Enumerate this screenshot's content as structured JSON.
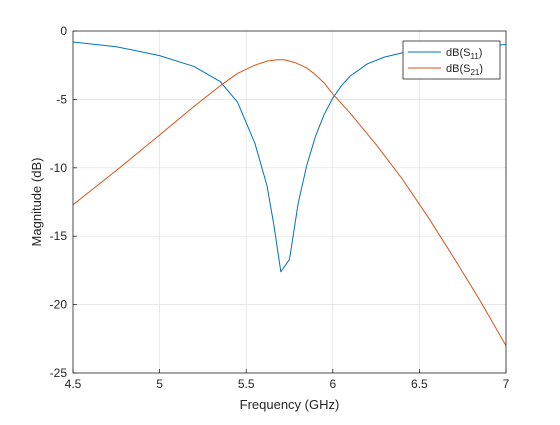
{
  "chart_data": {
    "type": "line",
    "xlabel": "Frequency (GHz)",
    "ylabel": "Magnitude (dB)",
    "xlim": [
      4.5,
      7
    ],
    "ylim": [
      -25,
      0
    ],
    "x_ticks": [
      "4.5",
      "5",
      "5.5",
      "6",
      "6.5",
      "7"
    ],
    "y_ticks": [
      "0",
      "-5",
      "-10",
      "-15",
      "-20",
      "-25"
    ],
    "grid": true,
    "legend_position": "top-right",
    "series": [
      {
        "name": "dB(S11)",
        "legend_main": "dB(S",
        "legend_sub": "11",
        "legend_close": ")",
        "color": "#0072BD",
        "x": [
          4.5,
          4.75,
          5.0,
          5.2,
          5.35,
          5.45,
          5.55,
          5.62,
          5.66,
          5.7,
          5.75,
          5.8,
          5.85,
          5.9,
          5.95,
          6.0,
          6.05,
          6.1,
          6.2,
          6.3,
          6.4,
          6.6,
          6.8,
          7.0
        ],
        "y": [
          -0.8,
          -1.15,
          -1.8,
          -2.6,
          -3.7,
          -5.2,
          -8.2,
          -11.3,
          -14.2,
          -17.6,
          -16.7,
          -12.6,
          -9.8,
          -7.7,
          -6.1,
          -4.9,
          -4.0,
          -3.3,
          -2.4,
          -1.9,
          -1.6,
          -1.25,
          -1.1,
          -1.0
        ]
      },
      {
        "name": "dB(S21)",
        "legend_main": "dB(S",
        "legend_sub": "21",
        "legend_close": ")",
        "color": "#D95319",
        "x": [
          4.5,
          4.75,
          5.0,
          5.2,
          5.35,
          5.45,
          5.55,
          5.62,
          5.68,
          5.72,
          5.78,
          5.85,
          5.9,
          5.95,
          6.0,
          6.1,
          6.25,
          6.4,
          6.55,
          6.7,
          6.85,
          7.0
        ],
        "y": [
          -12.7,
          -10.2,
          -7.6,
          -5.5,
          -4.0,
          -3.1,
          -2.5,
          -2.2,
          -2.1,
          -2.1,
          -2.3,
          -2.7,
          -3.2,
          -3.8,
          -4.6,
          -6.0,
          -8.3,
          -10.8,
          -13.6,
          -16.6,
          -19.7,
          -23.0
        ]
      }
    ]
  }
}
